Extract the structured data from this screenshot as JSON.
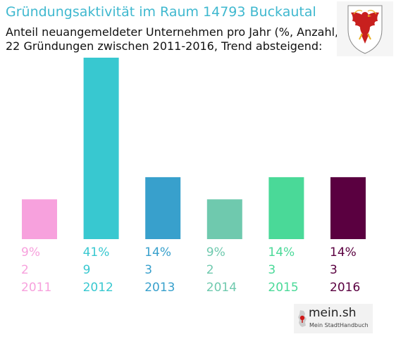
{
  "header": {
    "title": "Gründungsaktivität im Raum 14793 Buckautal",
    "subtitle_line1": "Anteil neuangemeldeter Unternehmen pro Jahr (%, Anzahl, Jahr)",
    "subtitle_line2": "22 Gründungen zwischen 2011-2016, Trend absteigend:"
  },
  "crest": {
    "icon": "brandenburg-eagle-crest-icon"
  },
  "brand": {
    "name": "mein.sh",
    "tagline": "Mein StadtHandbuch",
    "icon": "germany-map-pin-icon"
  },
  "chart_data": {
    "type": "bar",
    "categories": [
      "2011",
      "2012",
      "2013",
      "2014",
      "2015",
      "2016"
    ],
    "values": [
      9,
      41,
      14,
      9,
      14,
      14
    ],
    "counts": [
      2,
      9,
      3,
      2,
      3,
      3
    ],
    "percent_labels": [
      "9%",
      "41%",
      "14%",
      "9%",
      "14%",
      "14%"
    ],
    "count_labels": [
      "2",
      "9",
      "3",
      "2",
      "3",
      "3"
    ],
    "colors": [
      "#f7a1dd",
      "#38c8d0",
      "#38a0cc",
      "#6fc9ae",
      "#4ad998",
      "#5a0040"
    ],
    "grid": false,
    "legend": "none"
  }
}
